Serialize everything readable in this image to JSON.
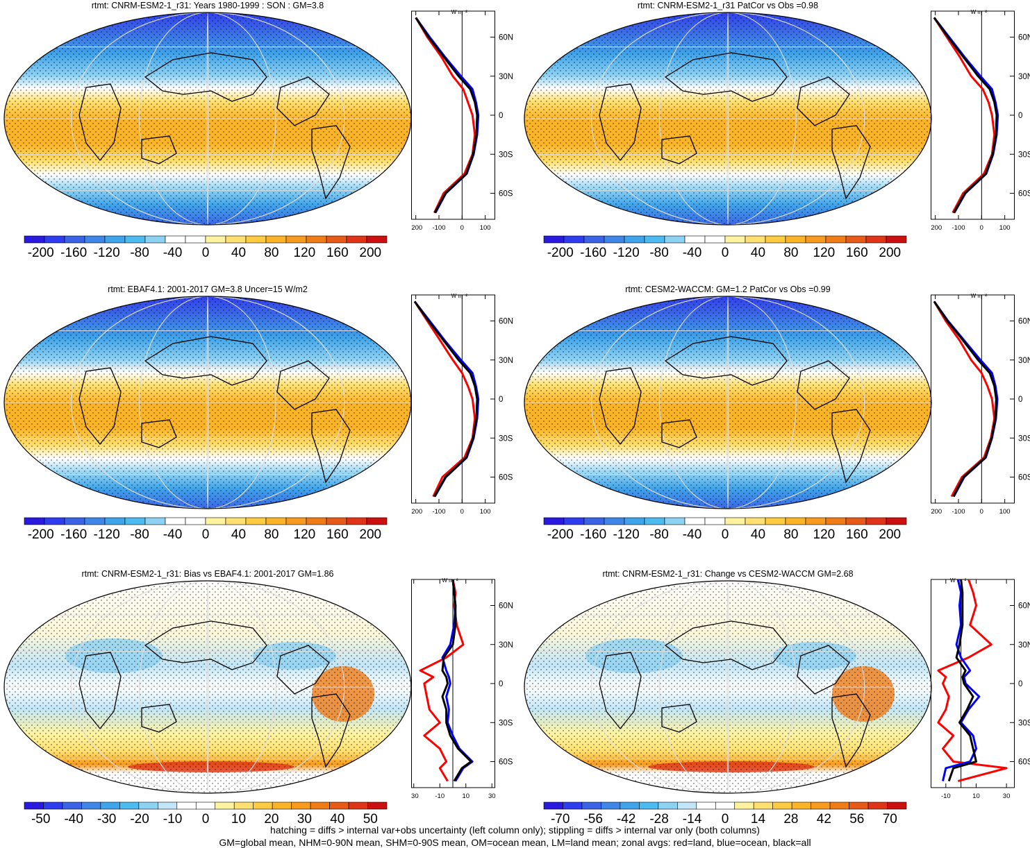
{
  "footer": {
    "line1": "hatching = diffs > internal var+obs uncertainty (left column only); stippling = diffs > internal var only (both columns)",
    "line2": "GM=global mean, NHM=0-90N mean, SHM=0-90S mean, OM=ocean mean, LM=land mean; zonal avgs: red=land, blue=ocean, black=all"
  },
  "chart_data": [
    {
      "type": "heatmap",
      "title": "rtmt: CNRM-ESM2-1_r31: Years 1980-1999 : SON : GM=3.8",
      "colorbar": {
        "ticks": [
          "-200",
          "-160",
          "-120",
          "-80",
          "-40",
          "0",
          "40",
          "80",
          "120",
          "160",
          "200"
        ],
        "range": [
          -220,
          220
        ]
      },
      "zonal_mean": {
        "xlabel": "W m⁻²",
        "xticks": [
          "-200",
          "-100",
          "0",
          "100"
        ],
        "xlim": [
          -220,
          140
        ],
        "lat_ticks": [
          "60N",
          "30N",
          "0",
          "30S",
          "60S"
        ],
        "series": [
          {
            "name": "red=land",
            "color": "#ff0000",
            "lat": [
              75,
              60,
              45,
              30,
              20,
              10,
              0,
              -15,
              -30,
              -45,
              -60,
              -75
            ],
            "values": [
              -200,
              -150,
              -90,
              -40,
              5,
              25,
              45,
              55,
              45,
              10,
              -80,
              -120
            ]
          },
          {
            "name": "blue=ocean",
            "color": "#0000ff",
            "lat": [
              75,
              60,
              45,
              30,
              20,
              10,
              0,
              -15,
              -30,
              -45,
              -60,
              -75
            ],
            "values": [
              -200,
              -140,
              -75,
              -5,
              45,
              60,
              70,
              65,
              50,
              20,
              -70,
              -115
            ]
          },
          {
            "name": "black=all",
            "color": "#000000",
            "lat": [
              75,
              60,
              45,
              30,
              20,
              10,
              0,
              -15,
              -30,
              -45,
              -60,
              -75
            ],
            "values": [
              -200,
              -145,
              -80,
              -15,
              35,
              55,
              65,
              62,
              48,
              18,
              -72,
              -118
            ]
          }
        ]
      }
    },
    {
      "type": "heatmap",
      "title": "rtmt: CNRM-ESM2-1_r31 PatCor vs Obs =0.98",
      "colorbar": {
        "ticks": [
          "-200",
          "-160",
          "-120",
          "-80",
          "-40",
          "0",
          "40",
          "80",
          "120",
          "160",
          "200"
        ],
        "range": [
          -220,
          220
        ]
      },
      "zonal_mean": {
        "xlabel": "W m⁻²",
        "xticks": [
          "-200",
          "-100",
          "0",
          "100"
        ],
        "xlim": [
          -220,
          140
        ],
        "lat_ticks": [
          "60N",
          "30N",
          "0",
          "30S",
          "60S"
        ],
        "series": [
          {
            "name": "red=land",
            "color": "#ff0000",
            "lat": [
              75,
              60,
              45,
              30,
              20,
              10,
              0,
              -15,
              -30,
              -45,
              -60,
              -75
            ],
            "values": [
              -205,
              -150,
              -95,
              -45,
              5,
              30,
              45,
              55,
              45,
              10,
              -80,
              -125
            ]
          },
          {
            "name": "blue=ocean",
            "color": "#0000ff",
            "lat": [
              75,
              60,
              45,
              30,
              20,
              10,
              0,
              -15,
              -30,
              -45,
              -60,
              -75
            ],
            "values": [
              -205,
              -140,
              -75,
              -5,
              45,
              60,
              70,
              65,
              50,
              20,
              -70,
              -118
            ]
          },
          {
            "name": "black=all",
            "color": "#000000",
            "lat": [
              75,
              60,
              45,
              30,
              20,
              10,
              0,
              -15,
              -30,
              -45,
              -60,
              -75
            ],
            "values": [
              -205,
              -145,
              -80,
              -15,
              35,
              55,
              65,
              62,
              48,
              18,
              -72,
              -120
            ]
          }
        ]
      }
    },
    {
      "type": "heatmap",
      "title": "rtmt: EBAF4.1: 2001-2017 GM=3.8 Uncer=15 W/m2",
      "colorbar": {
        "ticks": [
          "-200",
          "-160",
          "-120",
          "-80",
          "-40",
          "0",
          "40",
          "80",
          "120",
          "160",
          "200"
        ],
        "range": [
          -220,
          220
        ]
      },
      "zonal_mean": {
        "xlabel": "W m⁻²",
        "xticks": [
          "-200",
          "-100",
          "0",
          "100"
        ],
        "xlim": [
          -220,
          140
        ],
        "lat_ticks": [
          "60N",
          "30N",
          "0",
          "30S",
          "60S"
        ],
        "series": [
          {
            "name": "red=land",
            "color": "#ff0000",
            "lat": [
              75,
              60,
              45,
              30,
              20,
              10,
              0,
              -15,
              -30,
              -45,
              -60,
              -75
            ],
            "values": [
              -205,
              -150,
              -95,
              -40,
              0,
              25,
              45,
              55,
              45,
              10,
              -85,
              -125
            ]
          },
          {
            "name": "blue=ocean",
            "color": "#0000ff",
            "lat": [
              75,
              60,
              45,
              30,
              20,
              10,
              0,
              -15,
              -30,
              -45,
              -60,
              -75
            ],
            "values": [
              -205,
              -140,
              -75,
              -5,
              45,
              60,
              70,
              65,
              50,
              20,
              -70,
              -118
            ]
          },
          {
            "name": "black=all",
            "color": "#000000",
            "lat": [
              75,
              60,
              45,
              30,
              20,
              10,
              0,
              -15,
              -30,
              -45,
              -60,
              -75
            ],
            "values": [
              -205,
              -145,
              -80,
              -15,
              35,
              55,
              65,
              62,
              48,
              18,
              -72,
              -120
            ]
          }
        ]
      }
    },
    {
      "type": "heatmap",
      "title": "rtmt: CESM2-WACCM: GM=1.2 PatCor vs Obs =0.99",
      "colorbar": {
        "ticks": [
          "-200",
          "-160",
          "-120",
          "-80",
          "-40",
          "0",
          "40",
          "80",
          "120",
          "160",
          "200"
        ],
        "range": [
          -220,
          220
        ]
      },
      "zonal_mean": {
        "xlabel": "W m⁻²",
        "xticks": [
          "-200",
          "-100",
          "0",
          "100"
        ],
        "xlim": [
          -220,
          140
        ],
        "lat_ticks": [
          "60N",
          "30N",
          "0",
          "30S",
          "60S"
        ],
        "series": [
          {
            "name": "red=land",
            "color": "#ff0000",
            "lat": [
              75,
              60,
              45,
              30,
              20,
              10,
              0,
              -15,
              -30,
              -45,
              -60,
              -75
            ],
            "values": [
              -205,
              -155,
              -95,
              -45,
              0,
              25,
              45,
              55,
              40,
              10,
              -85,
              -130
            ]
          },
          {
            "name": "blue=ocean",
            "color": "#0000ff",
            "lat": [
              75,
              60,
              45,
              30,
              20,
              10,
              0,
              -15,
              -30,
              -45,
              -60,
              -75
            ],
            "values": [
              -205,
              -145,
              -75,
              -5,
              45,
              60,
              68,
              62,
              45,
              18,
              -75,
              -120
            ]
          },
          {
            "name": "black=all",
            "color": "#000000",
            "lat": [
              75,
              60,
              45,
              30,
              20,
              10,
              0,
              -15,
              -30,
              -45,
              -60,
              -75
            ],
            "values": [
              -205,
              -148,
              -80,
              -15,
              35,
              55,
              63,
              60,
              43,
              16,
              -78,
              -122
            ]
          }
        ]
      }
    },
    {
      "type": "heatmap",
      "title": "rtmt: CNRM-ESM2-1_r31: Bias vs EBAF4.1: 2001-2017  GM=1.86",
      "colorbar": {
        "ticks": [
          "-50",
          "-40",
          "-30",
          "-20",
          "-10",
          "0",
          "10",
          "20",
          "30",
          "40",
          "50"
        ],
        "range": [
          -55,
          55
        ]
      },
      "zonal_mean": {
        "xlabel": "W m⁻²",
        "xticks": [
          "-30",
          "-10",
          "10",
          "30"
        ],
        "xlim": [
          -32,
          32
        ],
        "lat_ticks": [
          "60N",
          "30N",
          "0",
          "30S",
          "60S"
        ],
        "series": [
          {
            "name": "red=land",
            "color": "#ff0000",
            "lat": [
              80,
              70,
              60,
              45,
              30,
              20,
              10,
              5,
              0,
              -10,
              -20,
              -30,
              -40,
              -50,
              -60,
              -65,
              -75
            ],
            "values": [
              0,
              2,
              1,
              3,
              8,
              -5,
              -25,
              -15,
              -22,
              -20,
              -18,
              -10,
              -22,
              -10,
              -5,
              -10,
              -4
            ]
          },
          {
            "name": "blue=ocean",
            "color": "#0000ff",
            "lat": [
              80,
              70,
              60,
              45,
              30,
              20,
              10,
              5,
              0,
              -10,
              -20,
              -30,
              -40,
              -50,
              -60,
              -65,
              -75
            ],
            "values": [
              0,
              1,
              2,
              1,
              -2,
              -8,
              -5,
              -3,
              -2,
              -5,
              -3,
              -4,
              0,
              5,
              15,
              8,
              2
            ]
          },
          {
            "name": "black=all",
            "color": "#000000",
            "lat": [
              80,
              70,
              60,
              45,
              30,
              20,
              10,
              5,
              0,
              -10,
              -20,
              -30,
              -40,
              -50,
              -60,
              -65,
              -75
            ],
            "values": [
              0,
              1,
              2,
              2,
              0,
              -7,
              -8,
              -5,
              -4,
              -8,
              -5,
              -5,
              -2,
              4,
              14,
              7,
              1
            ]
          }
        ]
      }
    },
    {
      "type": "heatmap",
      "title": "rtmt: CNRM-ESM2-1_r31: Change vs CESM2-WACCM GM=2.68",
      "colorbar": {
        "ticks": [
          "-70",
          "-56",
          "-42",
          "-28",
          "-14",
          "0",
          "14",
          "28",
          "42",
          "56",
          "70"
        ],
        "range": [
          -77,
          77
        ]
      },
      "zonal_mean": {
        "xlabel": "W m⁻²",
        "xticks": [
          "-10",
          "10",
          "30"
        ],
        "xlim": [
          -20,
          35
        ],
        "lat_ticks": [
          "60N",
          "30N",
          "0",
          "30S",
          "60S"
        ],
        "series": [
          {
            "name": "red=land",
            "color": "#ff0000",
            "lat": [
              80,
              70,
              60,
              45,
              30,
              20,
              10,
              5,
              0,
              -10,
              -20,
              -30,
              -40,
              -50,
              -60,
              -65,
              -75
            ],
            "values": [
              5,
              8,
              10,
              6,
              20,
              5,
              -15,
              -10,
              -12,
              -8,
              -10,
              -15,
              -5,
              -12,
              -5,
              30,
              -2
            ]
          },
          {
            "name": "blue=ocean",
            "color": "#0000ff",
            "lat": [
              80,
              70,
              60,
              45,
              30,
              20,
              10,
              5,
              0,
              -10,
              -20,
              -30,
              -40,
              -50,
              -60,
              -65,
              -75
            ],
            "values": [
              -2,
              0,
              -1,
              0,
              -3,
              0,
              6,
              2,
              3,
              12,
              5,
              0,
              8,
              10,
              6,
              -10,
              -12
            ]
          },
          {
            "name": "black=all",
            "color": "#000000",
            "lat": [
              80,
              70,
              60,
              45,
              30,
              20,
              10,
              5,
              0,
              -10,
              -20,
              -30,
              -40,
              -50,
              -60,
              -65,
              -75
            ],
            "values": [
              0,
              1,
              1,
              1,
              -1,
              -3,
              3,
              1,
              2,
              8,
              4,
              -1,
              6,
              8,
              10,
              -5,
              -8
            ]
          }
        ]
      }
    }
  ]
}
